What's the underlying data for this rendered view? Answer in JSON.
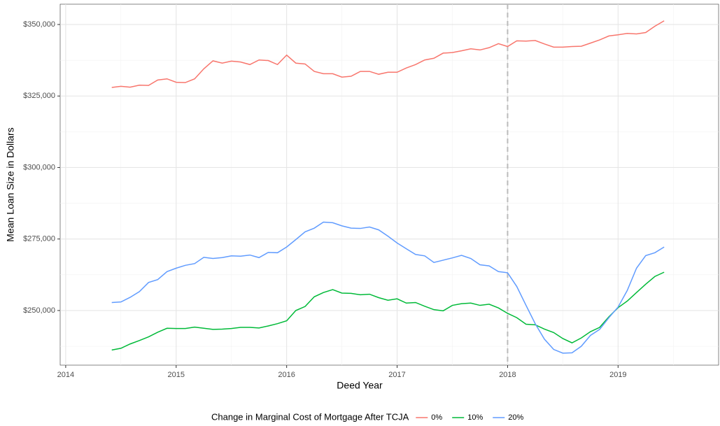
{
  "chart_data": {
    "type": "line",
    "x_label": "Deed Year",
    "y_label": "Mean Loan Size in Dollars",
    "legend_title": "Change in Marginal Cost of Mortgage After TCJA",
    "legend_position": "bottom",
    "grid": true,
    "x": [
      2014.417,
      2014.5,
      2014.583,
      2014.667,
      2014.75,
      2014.833,
      2014.917,
      2015,
      2015.083,
      2015.167,
      2015.25,
      2015.333,
      2015.417,
      2015.5,
      2015.583,
      2015.667,
      2015.75,
      2015.833,
      2015.917,
      2016,
      2016.083,
      2016.167,
      2016.25,
      2016.333,
      2016.417,
      2016.5,
      2016.583,
      2016.667,
      2016.75,
      2016.833,
      2016.917,
      2017,
      2017.083,
      2017.167,
      2017.25,
      2017.333,
      2017.417,
      2017.5,
      2017.583,
      2017.667,
      2017.75,
      2017.833,
      2017.917,
      2018,
      2018.083,
      2018.167,
      2018.25,
      2018.333,
      2018.417,
      2018.5,
      2018.583,
      2018.667,
      2018.75,
      2018.833,
      2018.917,
      2019,
      2019.083,
      2019.167,
      2019.25,
      2019.333,
      2019.417
    ],
    "series": [
      {
        "name": "0%",
        "color": "#F8766D",
        "values": [
          328000,
          328400,
          328100,
          328800,
          328700,
          330600,
          331000,
          329800,
          329700,
          331000,
          334500,
          337300,
          336500,
          337200,
          336900,
          336000,
          337600,
          337400,
          336000,
          339300,
          336500,
          336200,
          333600,
          332800,
          332800,
          331600,
          331900,
          333600,
          333600,
          332600,
          333300,
          333300,
          334800,
          336000,
          337600,
          338200,
          340000,
          340200,
          340800,
          341500,
          341100,
          341900,
          343300,
          342300,
          344300,
          344200,
          344400,
          343200,
          342100,
          342100,
          342300,
          342400,
          343500,
          344600,
          346000,
          346400,
          346900,
          346700,
          347200,
          349400,
          351300
        ]
      },
      {
        "name": "10%",
        "color": "#00BA38",
        "values": [
          236200,
          236800,
          238300,
          239500,
          240800,
          242400,
          243800,
          243700,
          243700,
          244200,
          243800,
          243400,
          243500,
          243700,
          244100,
          244100,
          243900,
          244600,
          245400,
          246400,
          250000,
          251400,
          254800,
          256300,
          257300,
          256100,
          256000,
          255500,
          255700,
          254500,
          253600,
          254100,
          252600,
          252800,
          251500,
          250300,
          249900,
          251800,
          252400,
          252600,
          251800,
          252200,
          250900,
          249000,
          247500,
          245200,
          245000,
          243500,
          242300,
          240200,
          238700,
          240400,
          242600,
          244100,
          247800,
          251000,
          253300,
          256300,
          259200,
          261900,
          263400
        ]
      },
      {
        "name": "20%",
        "color": "#619CFF",
        "values": [
          252800,
          253000,
          254600,
          256600,
          259800,
          260800,
          263600,
          264800,
          265800,
          266400,
          268600,
          268200,
          268500,
          269100,
          269000,
          269400,
          268500,
          270300,
          270200,
          272200,
          274800,
          277500,
          278800,
          280900,
          280700,
          279600,
          278800,
          278700,
          279200,
          278200,
          276000,
          273600,
          271600,
          269600,
          269100,
          266800,
          267600,
          268400,
          269300,
          268200,
          266000,
          265600,
          263600,
          263200,
          258400,
          251800,
          245400,
          240000,
          236400,
          235100,
          235200,
          237500,
          241300,
          243400,
          247500,
          251200,
          257000,
          264800,
          269200,
          270200,
          272200
        ]
      }
    ],
    "vline": 2018,
    "xlim": [
      2013.95,
      2019.91
    ],
    "xticks": [
      2014,
      2015,
      2016,
      2017,
      2018,
      2019
    ],
    "ylim": [
      230900,
      357100
    ],
    "yticks": [
      {
        "value": 250000,
        "label": "$250,000"
      },
      {
        "value": 275000,
        "label": "$275,000"
      },
      {
        "value": 300000,
        "label": "$300,000"
      },
      {
        "value": 325000,
        "label": "$325,000"
      },
      {
        "value": 350000,
        "label": "$350,000"
      }
    ]
  }
}
